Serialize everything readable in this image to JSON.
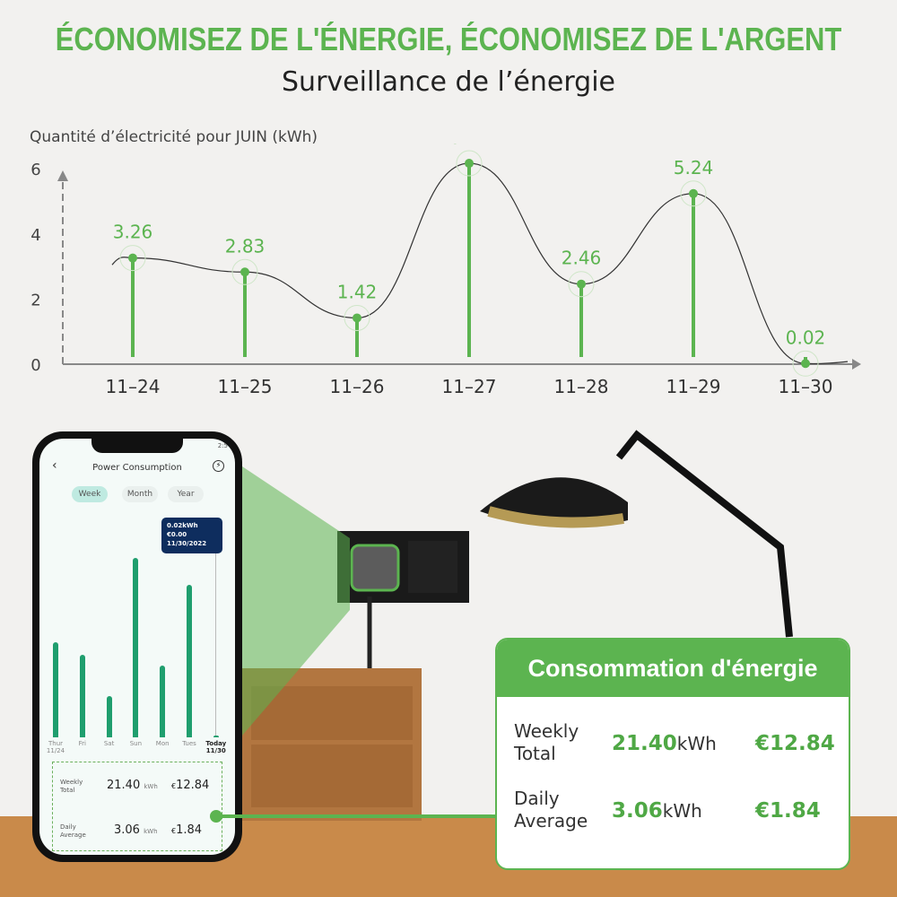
{
  "headline": "ÉCONOMISEZ DE L'ÉNERGIE, ÉCONOMISEZ DE L'ARGENT",
  "subtitle": "Surveillance de l’énergie",
  "chart_data": {
    "type": "line",
    "ylabel": "Quantité d’électricité pour JUIN (kWh)",
    "categories": [
      "11–24",
      "11–25",
      "11–26",
      "11–27",
      "11–28",
      "11–29",
      "11–30"
    ],
    "values": [
      3.26,
      2.83,
      1.42,
      6.17,
      2.46,
      5.24,
      0.02
    ],
    "yticks": [
      "0",
      "2",
      "4",
      "6"
    ],
    "ylim": [
      0,
      6.5
    ],
    "color": "#5cb450"
  },
  "phone": {
    "status_time": "2:5",
    "title": "Power Consumption",
    "tabs": [
      "Week",
      "Month",
      "Year"
    ],
    "tooltip": {
      "energy": "0.02kWh",
      "cost": "€0.00",
      "date": "11/30/2022"
    },
    "days": [
      {
        "d": "Thur",
        "s": "11/24"
      },
      {
        "d": "Fri",
        "s": ""
      },
      {
        "d": "Sat",
        "s": ""
      },
      {
        "d": "Sun",
        "s": ""
      },
      {
        "d": "Mon",
        "s": ""
      },
      {
        "d": "Tues",
        "s": ""
      },
      {
        "d": "Today",
        "s": "11/30"
      }
    ],
    "bars": [
      3.26,
      2.83,
      1.42,
      6.17,
      2.46,
      5.24,
      0.02
    ],
    "weekly_label": "Weekly Total",
    "weekly_kwh": "21.40",
    "weekly_cost": "12.84",
    "daily_label": "Daily Average",
    "daily_kwh": "3.06",
    "daily_cost": "1.84",
    "unit": "kWh",
    "currency": "€"
  },
  "card": {
    "title": "Consommation d'énergie",
    "weekly_label": "Weekly Total",
    "weekly_kwh": "21.40",
    "weekly_cost": "€12.84",
    "daily_label": "Daily Average",
    "daily_kwh": "3.06",
    "daily_cost": "€1.84",
    "unit": "kWh"
  }
}
